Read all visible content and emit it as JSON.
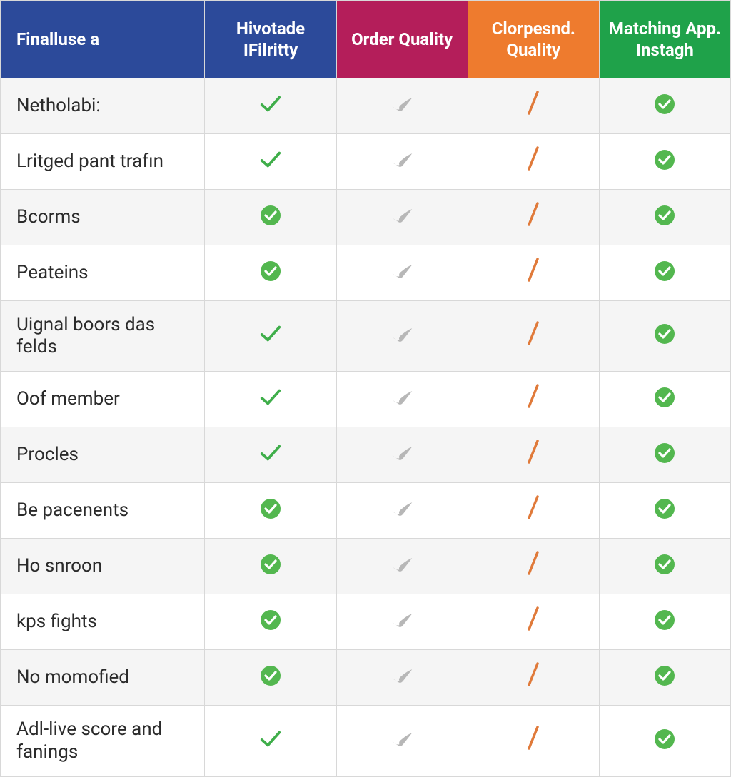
{
  "table": {
    "type": "table",
    "background_color": "#ffffff",
    "alt_row_color": "#f5f5f5",
    "border_color": "#d8d8d8",
    "header_fontsize": 24,
    "cell_fontsize": 26,
    "columns": [
      {
        "label": "Finalluse a",
        "bg": "#2c4a9a",
        "text": "#ffffff"
      },
      {
        "label": "Hivotade IFilritty",
        "bg": "#2c4a9a",
        "text": "#ffffff"
      },
      {
        "label": "Order Quality",
        "bg": "#b41e5a",
        "text": "#ffffff"
      },
      {
        "label": "Clorpesnd. Quality",
        "bg": "#ee7b2e",
        "text": "#ffffff"
      },
      {
        "label": "Matching App. Instagh",
        "bg": "#1fa24a",
        "text": "#ffffff"
      }
    ],
    "icon_palette": {
      "check_green": {
        "stroke": "#3fae4a"
      },
      "check_circle_green": {
        "fill": "#53b74f",
        "glyph": "#ffffff"
      },
      "check_gray": {
        "fill": "#b7b7b7"
      },
      "slash_orange": {
        "stroke": "#e07a3a"
      }
    },
    "rows": [
      {
        "label": "Netholabi:",
        "cells": [
          "check_green",
          "check_gray",
          "slash_orange",
          "check_circle_green"
        ]
      },
      {
        "label": "Lritged pant trafın",
        "cells": [
          "check_green",
          "check_gray",
          "slash_orange",
          "check_circle_green"
        ]
      },
      {
        "label": "Bcorms",
        "cells": [
          "check_circle_green",
          "check_gray",
          "slash_orange",
          "check_circle_green"
        ]
      },
      {
        "label": "Peateins",
        "cells": [
          "check_circle_green",
          "check_gray",
          "slash_orange",
          "check_circle_green"
        ]
      },
      {
        "label": "Uignal boors das felds",
        "cells": [
          "check_green",
          "check_gray",
          "slash_orange",
          "check_circle_green"
        ]
      },
      {
        "label": "Oof member",
        "cells": [
          "check_green",
          "check_gray",
          "slash_orange",
          "check_circle_green"
        ]
      },
      {
        "label": "Procles",
        "cells": [
          "check_green",
          "check_gray",
          "slash_orange",
          "check_circle_green"
        ]
      },
      {
        "label": "Be pacenents",
        "cells": [
          "check_circle_green",
          "check_gray",
          "slash_orange",
          "check_circle_green"
        ]
      },
      {
        "label": "Ho snroon",
        "cells": [
          "check_circle_green",
          "check_gray",
          "slash_orange",
          "check_circle_green"
        ]
      },
      {
        "label": "kps fights",
        "cells": [
          "check_circle_green",
          "check_gray",
          "slash_orange",
          "check_circle_green"
        ]
      },
      {
        "label": "No momofied",
        "cells": [
          "check_circle_green",
          "check_gray",
          "slash_orange",
          "check_circle_green"
        ]
      },
      {
        "label": "Adl-live score and fanings",
        "cells": [
          "check_green",
          "check_gray",
          "slash_orange",
          "check_circle_green"
        ]
      }
    ]
  }
}
